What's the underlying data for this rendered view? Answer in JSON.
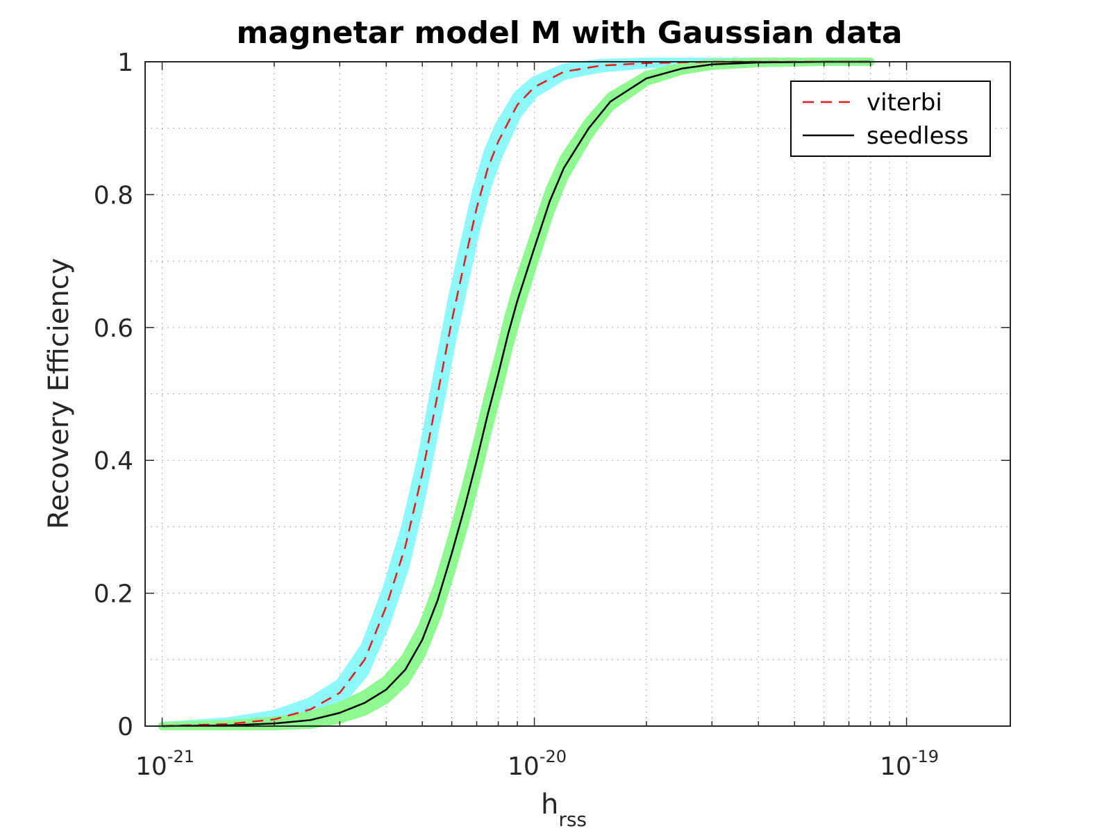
{
  "chart_data": {
    "type": "line",
    "title": "magnetar model M with Gaussian data",
    "xlabel": {
      "main": "h",
      "subscript": "rss"
    },
    "ylabel": "Recovery Efficiency",
    "xscale": "log",
    "xlim": [
      9e-22,
      1.9e-19
    ],
    "ylim": [
      0,
      1
    ],
    "grid": true,
    "minor_grid": true,
    "legend_position": "top-right",
    "xticks": [
      {
        "value": 1e-21,
        "base": "10",
        "exp": "-21"
      },
      {
        "value": 1e-20,
        "base": "10",
        "exp": "-20"
      },
      {
        "value": 1e-19,
        "base": "10",
        "exp": "-19"
      }
    ],
    "yticks": [
      {
        "value": 0,
        "label": "0"
      },
      {
        "value": 0.2,
        "label": "0.2"
      },
      {
        "value": 0.4,
        "label": "0.4"
      },
      {
        "value": 0.6,
        "label": "0.6"
      },
      {
        "value": 0.8,
        "label": "0.8"
      },
      {
        "value": 1,
        "label": "1"
      }
    ],
    "series": [
      {
        "name": "viterbi",
        "color": "#e41a1c",
        "dash": "dashed",
        "band_color": "#8ff8fb",
        "x": [
          1e-21,
          1.5e-21,
          2e-21,
          2.5e-21,
          3e-21,
          3.5e-21,
          4e-21,
          4.5e-21,
          5e-21,
          5.5e-21,
          6e-21,
          6.5e-21,
          7e-21,
          7.5e-21,
          8e-21,
          9e-21,
          1e-20,
          1.2e-20,
          1.5e-20,
          2e-20,
          3e-20,
          5e-20,
          8e-20
        ],
        "y": [
          0.0,
          0.003,
          0.01,
          0.025,
          0.05,
          0.1,
          0.18,
          0.27,
          0.38,
          0.5,
          0.61,
          0.7,
          0.78,
          0.84,
          0.88,
          0.935,
          0.962,
          0.985,
          0.994,
          0.998,
          1.0,
          1.0,
          1.0
        ],
        "band_halfwidth": [
          0.0,
          0.004,
          0.008,
          0.012,
          0.015,
          0.02,
          0.025,
          0.03,
          0.03,
          0.032,
          0.032,
          0.03,
          0.028,
          0.025,
          0.022,
          0.015,
          0.01,
          0.006,
          0.004,
          0.002,
          0.0,
          0.0,
          0.0
        ]
      },
      {
        "name": "seedless",
        "color": "#000000",
        "dash": "solid",
        "band_color": "#90f890",
        "x": [
          1e-21,
          1.5e-21,
          2e-21,
          2.5e-21,
          3e-21,
          3.5e-21,
          4e-21,
          4.5e-21,
          5e-21,
          5.5e-21,
          6e-21,
          6.5e-21,
          7e-21,
          7.5e-21,
          8e-21,
          8.5e-21,
          9e-21,
          1e-20,
          1.1e-20,
          1.2e-20,
          1.4e-20,
          1.6e-20,
          2e-20,
          2.5e-20,
          3e-20,
          4e-20,
          6e-20,
          8e-20
        ],
        "y": [
          0.0,
          0.001,
          0.004,
          0.009,
          0.02,
          0.035,
          0.055,
          0.085,
          0.13,
          0.19,
          0.26,
          0.33,
          0.4,
          0.47,
          0.53,
          0.59,
          0.64,
          0.72,
          0.79,
          0.84,
          0.9,
          0.94,
          0.975,
          0.99,
          0.996,
          0.999,
          1.0,
          1.0
        ],
        "band_halfwidth": [
          0.0,
          0.002,
          0.004,
          0.007,
          0.01,
          0.013,
          0.015,
          0.018,
          0.02,
          0.022,
          0.024,
          0.025,
          0.025,
          0.025,
          0.025,
          0.024,
          0.023,
          0.02,
          0.018,
          0.015,
          0.011,
          0.008,
          0.005,
          0.003,
          0.002,
          0.001,
          0.0,
          0.0
        ]
      }
    ]
  }
}
